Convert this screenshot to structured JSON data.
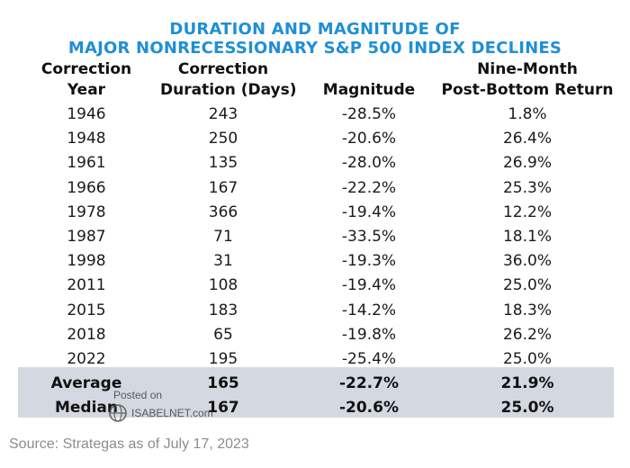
{
  "title_line1": "DURATION AND MAGNITUDE OF",
  "title_line2": "MAJOR NONRECESSIONARY S&P 500 INDEX DECLINES",
  "headers": [
    {
      "line1": "Correction",
      "line2": "Year"
    },
    {
      "line1": "Correction",
      "line2": "Duration (Days)"
    },
    {
      "line1": "",
      "line2": "Magnitude"
    },
    {
      "line1": "Nine-Month",
      "line2": "Post-Bottom Return"
    }
  ],
  "chart_data": {
    "type": "table",
    "title": "DURATION AND MAGNITUDE OF MAJOR NONRECESSIONARY S&P 500 INDEX DECLINES",
    "columns": [
      "Correction Year",
      "Correction Duration (Days)",
      "Magnitude",
      "Nine-Month Post-Bottom Return"
    ],
    "rows": [
      [
        "1946",
        "243",
        "-28.5%",
        "1.8%"
      ],
      [
        "1948",
        "250",
        "-20.6%",
        "26.4%"
      ],
      [
        "1961",
        "135",
        "-28.0%",
        "26.9%"
      ],
      [
        "1966",
        "167",
        "-22.2%",
        "25.3%"
      ],
      [
        "1978",
        "366",
        "-19.4%",
        "12.2%"
      ],
      [
        "1987",
        "71",
        "-33.5%",
        "18.1%"
      ],
      [
        "1998",
        "31",
        "-19.3%",
        "36.0%"
      ],
      [
        "2011",
        "108",
        "-19.4%",
        "25.0%"
      ],
      [
        "2015",
        "183",
        "-14.2%",
        "18.3%"
      ],
      [
        "2018",
        "65",
        "-19.8%",
        "26.2%"
      ],
      [
        "2022",
        "195",
        "-25.4%",
        "25.0%"
      ]
    ],
    "summary_rows": [
      [
        "Average",
        "165",
        "-22.7%",
        "21.9%"
      ],
      [
        "Median",
        "167",
        "-20.6%",
        "25.0%"
      ]
    ]
  },
  "watermark": {
    "line1": "Posted on",
    "line2": "ISABELNET.com"
  },
  "source": "Source: Strategas as of July 17, 2023",
  "colors": {
    "title": "#1f8fd6",
    "summary_shade": "#d4d9e1",
    "source_text": "#8c8c8c"
  }
}
